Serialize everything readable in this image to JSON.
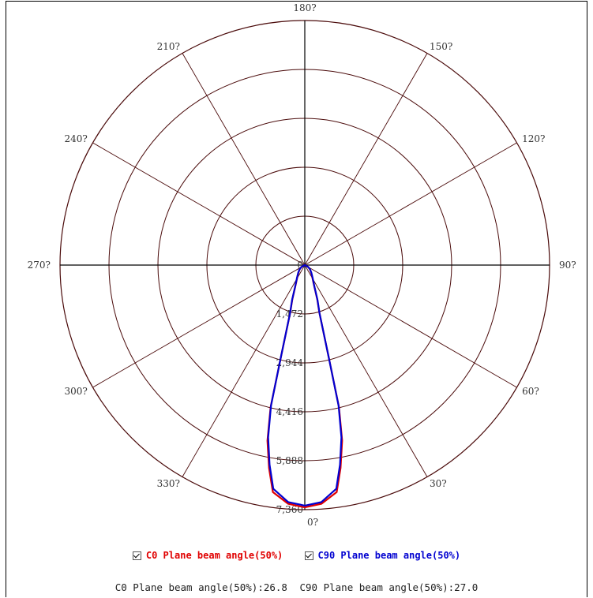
{
  "chart_data": {
    "type": "polar",
    "angle_labels": [
      "180?",
      "150?",
      "120?",
      "90?",
      "60?",
      "30?",
      "0?",
      "330?",
      "300?",
      "270?",
      "240?",
      "210?"
    ],
    "radial_ticks": [
      "0",
      "1,472",
      "2,944",
      "4,416",
      "5,888",
      "7,360"
    ],
    "radial_max": 7360,
    "grid": true,
    "series": [
      {
        "name": "C0 Plane beam angle(50%)",
        "color": "#e00000",
        "angles_deg": [
          0,
          4,
          8,
          10,
          12,
          13.5,
          14.5,
          17,
          20,
          24,
          28,
          32,
          40,
          50,
          60,
          180
        ],
        "values": [
          7290,
          7200,
          6900,
          6200,
          5400,
          4400,
          2900,
          1500,
          1100,
          700,
          520,
          420,
          300,
          200,
          120,
          0
        ]
      },
      {
        "name": "C90 Plane beam angle(50%)",
        "color": "#0000d0",
        "angles_deg": [
          0,
          4,
          8,
          10,
          12,
          13.5,
          14.5,
          17,
          20,
          24,
          28,
          32,
          40,
          50,
          60,
          180
        ],
        "values": [
          7240,
          7150,
          6800,
          6100,
          5300,
          4350,
          2900,
          1520,
          1120,
          720,
          540,
          440,
          310,
          210,
          120,
          0
        ]
      }
    ]
  },
  "legend": [
    {
      "label": "C0 Plane beam angle(50%)",
      "color": "#e00000",
      "checked": true
    },
    {
      "label": "C90 Plane beam angle(50%)",
      "color": "#0000d0",
      "checked": true
    }
  ],
  "summary": {
    "c0": "C0 Plane beam angle(50%):26.8",
    "c90": "C90 Plane beam angle(50%):27.0"
  }
}
